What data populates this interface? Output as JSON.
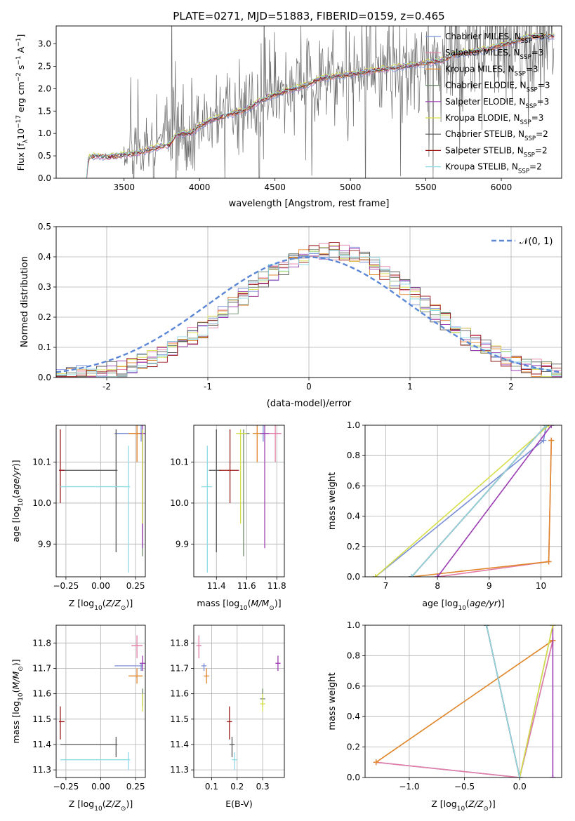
{
  "figure": {
    "title": "PLATE=0271, MJD=51883, FIBERID=0159, z=0.465"
  },
  "colors": {
    "Chabrier MILES": "#7b8fd6",
    "Salpeter MILES": "#e37da6",
    "Kroupa MILES": "#e0872c",
    "Chabrier ELODIE": "#6e8a6e",
    "Salpeter ELODIE": "#9b3cb3",
    "Kroupa ELODIE": "#d6df4a",
    "Chabrier STELIB": "#555555",
    "Salpeter STELIB": "#9b1b1b",
    "Kroupa STELIB": "#8fdbe6",
    "normal": "#5b87d6",
    "data": "#6b6b6b"
  },
  "chart_data": [
    {
      "id": "spectrum",
      "type": "line",
      "title": "PLATE=0271, MJD=51883, FIBERID=0159, z=0.465",
      "xlabel": "wavelength [Angstrom, rest frame]",
      "ylabel": "Flux [f_λ 10^-17 erg cm^-2 s^-1 A^-1]",
      "xlim": [
        3050,
        6400
      ],
      "ylim": [
        0,
        3.4
      ],
      "xticks": [
        3500,
        4000,
        4500,
        5000,
        5500,
        6000
      ],
      "yticks": [
        0.0,
        0.5,
        1.0,
        1.5,
        2.0,
        2.5,
        3.0
      ],
      "legend_position": "top-right",
      "legend": [
        {
          "name": "Chabrier MILES",
          "label": "Chabrier MILES, N_SSP=3",
          "n_ssp": 3
        },
        {
          "name": "Salpeter MILES",
          "label": "Salpeter MILES, N_SSP=3",
          "n_ssp": 3
        },
        {
          "name": "Kroupa MILES",
          "label": "Kroupa MILES, N_SSP=3",
          "n_ssp": 3
        },
        {
          "name": "Chabrier ELODIE",
          "label": "Chabrier ELODIE, N_SSP=3",
          "n_ssp": 3
        },
        {
          "name": "Salpeter ELODIE",
          "label": "Salpeter ELODIE, N_SSP=3",
          "n_ssp": 3
        },
        {
          "name": "Kroupa ELODIE",
          "label": "Kroupa ELODIE, N_SSP=3",
          "n_ssp": 3
        },
        {
          "name": "Chabrier STELIB",
          "label": "Chabrier STELIB, N_SSP=2",
          "n_ssp": 2
        },
        {
          "name": "Salpeter STELIB",
          "label": "Salpeter STELIB, N_SSP=2",
          "n_ssp": 2
        },
        {
          "name": "Kroupa STELIB",
          "label": "Kroupa STELIB, N_SSP=2",
          "n_ssp": 2
        }
      ],
      "model_envelope": {
        "x": [
          3250,
          3265,
          3300,
          3400,
          3500,
          3600,
          3700,
          3800,
          3850,
          3950,
          4000,
          4100,
          4200,
          4300,
          4400,
          4500,
          4600,
          4700,
          4800,
          4900,
          5000,
          5100,
          5200,
          5300,
          5400,
          5500,
          5600,
          5700,
          5800,
          5900,
          6000,
          6100,
          6200
        ],
        "y": [
          0.0,
          0.5,
          0.52,
          0.5,
          0.55,
          0.6,
          0.7,
          0.78,
          1.0,
          1.05,
          1.2,
          1.35,
          1.45,
          1.55,
          1.75,
          1.9,
          2.0,
          2.1,
          2.25,
          2.3,
          2.35,
          2.4,
          2.45,
          2.5,
          2.55,
          2.6,
          2.65,
          2.8,
          2.85,
          2.9,
          3.0,
          3.1,
          3.2
        ]
      }
    },
    {
      "id": "residuals",
      "type": "line",
      "xlabel": "(data-model)/error",
      "ylabel": "Normed distribution",
      "xlim": [
        -2.5,
        2.5
      ],
      "ylim": [
        0,
        0.5
      ],
      "xticks": [
        -2,
        -1,
        0,
        1,
        2
      ],
      "yticks": [
        0.0,
        0.1,
        0.2,
        0.3,
        0.4,
        0.5
      ],
      "legend_position": "top-right",
      "legend": [
        {
          "name": "N(0,1)",
          "label": "𝒩(0, 1)"
        }
      ],
      "reference_curve": "standard normal, peak 0.399 at 0"
    },
    {
      "id": "age_vs_Z",
      "type": "scatter",
      "xlabel": "Z [log10(Z/Z☉)]",
      "ylabel": "age [log10(age/yr)]",
      "xlim": [
        -0.32,
        0.32
      ],
      "ylim": [
        9.82,
        10.19
      ],
      "xticks": [
        -0.25,
        0.0,
        0.25
      ],
      "yticks": [
        9.9,
        10.0,
        10.1
      ],
      "xticklabels": [
        "−0.25",
        "0.00",
        "0.25"
      ],
      "yticklabels": [
        "9.9",
        "10.0",
        "10.1"
      ]
    },
    {
      "id": "age_vs_mass",
      "type": "scatter",
      "xlabel": "mass [log10(M/M☉)]",
      "xlim": [
        11.25,
        11.85
      ],
      "ylim": [
        9.82,
        10.19
      ],
      "xticks": [
        11.4,
        11.6,
        11.8
      ],
      "yticks": [
        9.9,
        10.0,
        10.1
      ],
      "xticklabels": [
        "11.4",
        "11.6",
        "11.8"
      ],
      "yticklabels": [
        "9.9",
        "10.0",
        "10.1"
      ]
    },
    {
      "id": "weight_vs_age",
      "type": "line",
      "xlabel": "age [log10(age/yr)]",
      "ylabel": "mass weight",
      "xlim": [
        6.6,
        10.4
      ],
      "ylim": [
        0,
        1
      ],
      "xticks": [
        7,
        8,
        9,
        10
      ],
      "yticks": [
        0.0,
        0.2,
        0.4,
        0.6,
        0.8,
        1.0
      ],
      "xticklabels": [
        "7",
        "8",
        "9",
        "10"
      ],
      "yticklabels": [
        "0.0",
        "0.2",
        "0.4",
        "0.6",
        "0.8",
        "1.0"
      ]
    },
    {
      "id": "mass_vs_Z",
      "type": "scatter",
      "xlabel": "Z [log10(Z/Z☉)]",
      "ylabel": "mass [log10(M/M☉)]",
      "xlim": [
        -0.32,
        0.32
      ],
      "ylim": [
        11.27,
        11.87
      ],
      "xticks": [
        -0.25,
        0.0,
        0.25
      ],
      "yticks": [
        11.3,
        11.4,
        11.5,
        11.6,
        11.7,
        11.8
      ],
      "xticklabels": [
        "−0.25",
        "0.00",
        "0.25"
      ],
      "yticklabels": [
        "11.3",
        "11.4",
        "11.5",
        "11.6",
        "11.7",
        "11.8"
      ]
    },
    {
      "id": "mass_vs_ebv",
      "type": "scatter",
      "xlabel": "E(B-V)",
      "xlim": [
        0.03,
        0.385
      ],
      "ylim": [
        11.27,
        11.87
      ],
      "xticks": [
        0.1,
        0.2,
        0.3
      ],
      "yticks": [
        11.3,
        11.4,
        11.5,
        11.6,
        11.7,
        11.8
      ],
      "xticklabels": [
        "0.1",
        "0.2",
        "0.3"
      ],
      "yticklabels": [
        "11.3",
        "11.4",
        "11.5",
        "11.6",
        "11.7",
        "11.8"
      ]
    },
    {
      "id": "weight_vs_Z",
      "type": "line",
      "xlabel": "Z [log10(Z/Z☉)]",
      "ylabel": "mass weight",
      "xlim": [
        -1.4,
        0.38
      ],
      "ylim": [
        0,
        1
      ],
      "xticks": [
        -1.0,
        -0.5,
        0.0
      ],
      "yticks": [
        0.0,
        0.2,
        0.4,
        0.6,
        0.8,
        1.0
      ],
      "xticklabels": [
        "−1.0",
        "−0.5",
        "0.0"
      ],
      "yticklabels": [
        "0.0",
        "0.2",
        "0.4",
        "0.6",
        "0.8",
        "1.0"
      ]
    }
  ],
  "fits": [
    {
      "name": "Chabrier MILES",
      "age": 10.17,
      "age_lo": 10.15,
      "age_hi": 10.19,
      "Z": 0.29,
      "Z_lo": 0.1,
      "Z_hi": 0.3,
      "mass": 11.71,
      "mass_lo": 11.69,
      "mass_hi": 11.72,
      "ebv": 0.07,
      "ebv_lo": 0.06,
      "ebv_hi": 0.08,
      "cum_age": [
        [
          6.8,
          0.0
        ],
        [
          10.05,
          0.9
        ],
        [
          10.1,
          1.0
        ]
      ],
      "cum_Z": [
        [
          -1.3,
          0.1
        ],
        [
          0.0,
          0.0
        ],
        [
          0.3,
          0.9
        ]
      ]
    },
    {
      "name": "Salpeter MILES",
      "age": 10.17,
      "age_lo": 10.1,
      "age_hi": 10.19,
      "Z": 0.26,
      "Z_lo": 0.22,
      "Z_hi": 0.3,
      "mass": 11.79,
      "mass_lo": 11.74,
      "mass_hi": 11.83,
      "ebv": 0.05,
      "ebv_lo": 0.04,
      "ebv_hi": 0.06,
      "cum_age": [
        [
          8.0,
          0.0
        ],
        [
          10.15,
          0.1
        ],
        [
          10.2,
          0.9
        ]
      ],
      "cum_Z": [
        [
          -1.3,
          0.1
        ],
        [
          0.0,
          0.0
        ],
        [
          0.3,
          0.9
        ]
      ]
    },
    {
      "name": "Kroupa MILES",
      "age": 10.17,
      "age_lo": 10.1,
      "age_hi": 10.19,
      "Z": 0.26,
      "Z_lo": 0.2,
      "Z_hi": 0.3,
      "mass": 11.67,
      "mass_lo": 11.64,
      "mass_hi": 11.7,
      "ebv": 0.08,
      "ebv_lo": 0.07,
      "ebv_hi": 0.09,
      "cum_age": [
        [
          7.5,
          0.0
        ],
        [
          10.15,
          0.1
        ],
        [
          10.2,
          0.9
        ]
      ],
      "cum_Z": [
        [
          -1.3,
          0.1
        ],
        [
          0.3,
          0.9
        ]
      ]
    },
    {
      "name": "Chabrier ELODIE",
      "age": 10.17,
      "age_lo": 9.87,
      "age_hi": 10.18,
      "Z": 0.3,
      "Z_lo": 0.3,
      "Z_hi": 0.3,
      "mass": 11.58,
      "mass_lo": 11.55,
      "mass_hi": 11.62,
      "ebv": 0.3,
      "ebv_lo": 0.29,
      "ebv_hi": 0.31,
      "cum_age": [
        [
          7.5,
          0.0
        ],
        [
          10.1,
          1.0
        ]
      ],
      "cum_Z": [
        [
          -0.3,
          1.0
        ],
        [
          0.0,
          0.0
        ],
        [
          0.3,
          1.0
        ]
      ]
    },
    {
      "name": "Salpeter ELODIE",
      "age": 10.17,
      "age_lo": 9.89,
      "age_hi": 10.19,
      "Z": 0.3,
      "Z_lo": 0.28,
      "Z_hi": 0.32,
      "mass": 11.72,
      "mass_lo": 11.69,
      "mass_hi": 11.75,
      "ebv": 0.36,
      "ebv_lo": 0.35,
      "ebv_hi": 0.37,
      "cum_age": [
        [
          8.0,
          0.0
        ],
        [
          10.2,
          1.0
        ]
      ],
      "cum_Z": [
        [
          0.3,
          0.0
        ],
        [
          0.3,
          1.0
        ]
      ]
    },
    {
      "name": "Kroupa ELODIE",
      "age": 10.17,
      "age_lo": 9.95,
      "age_hi": 10.18,
      "Z": 0.3,
      "Z_lo": 0.3,
      "Z_hi": 0.3,
      "mass": 11.56,
      "mass_lo": 11.53,
      "mass_hi": 11.6,
      "ebv": 0.3,
      "ebv_lo": 0.29,
      "ebv_hi": 0.31,
      "cum_age": [
        [
          6.8,
          0.0
        ],
        [
          10.15,
          1.0
        ]
      ],
      "cum_Z": [
        [
          0.0,
          0.0
        ],
        [
          0.3,
          1.0
        ]
      ]
    },
    {
      "name": "Chabrier STELIB",
      "age": 10.08,
      "age_lo": 9.88,
      "age_hi": 10.18,
      "Z": 0.11,
      "Z_lo": -0.29,
      "Z_hi": 0.12,
      "mass": 11.4,
      "mass_lo": 11.35,
      "mass_hi": 11.43,
      "ebv": 0.18,
      "ebv_lo": 0.17,
      "ebv_hi": 0.19,
      "cum_age": [
        [
          7.5,
          0.0
        ],
        [
          10.1,
          1.0
        ]
      ],
      "cum_Z": [
        [
          -0.3,
          1.0
        ],
        [
          0.0,
          0.0
        ]
      ]
    },
    {
      "name": "Salpeter STELIB",
      "age": 10.08,
      "age_lo": 10.0,
      "age_hi": 10.18,
      "Z": -0.29,
      "Z_lo": -0.3,
      "Z_hi": -0.26,
      "mass": 11.49,
      "mass_lo": 11.42,
      "mass_hi": 11.55,
      "ebv": 0.17,
      "ebv_lo": 0.16,
      "ebv_hi": 0.18,
      "cum_age": [
        [
          7.5,
          0.0
        ],
        [
          10.1,
          1.0
        ]
      ],
      "cum_Z": [
        [
          -0.3,
          1.0
        ],
        [
          0.0,
          0.0
        ]
      ]
    },
    {
      "name": "Kroupa STELIB",
      "age": 10.04,
      "age_lo": 9.83,
      "age_hi": 10.14,
      "Z": 0.2,
      "Z_lo": -0.29,
      "Z_hi": 0.21,
      "mass": 11.34,
      "mass_lo": 11.3,
      "mass_hi": 11.37,
      "ebv": 0.19,
      "ebv_lo": 0.18,
      "ebv_hi": 0.2,
      "cum_age": [
        [
          7.5,
          0.0
        ],
        [
          10.1,
          1.0
        ]
      ],
      "cum_Z": [
        [
          -0.3,
          1.0
        ],
        [
          0.0,
          0.0
        ]
      ]
    }
  ]
}
